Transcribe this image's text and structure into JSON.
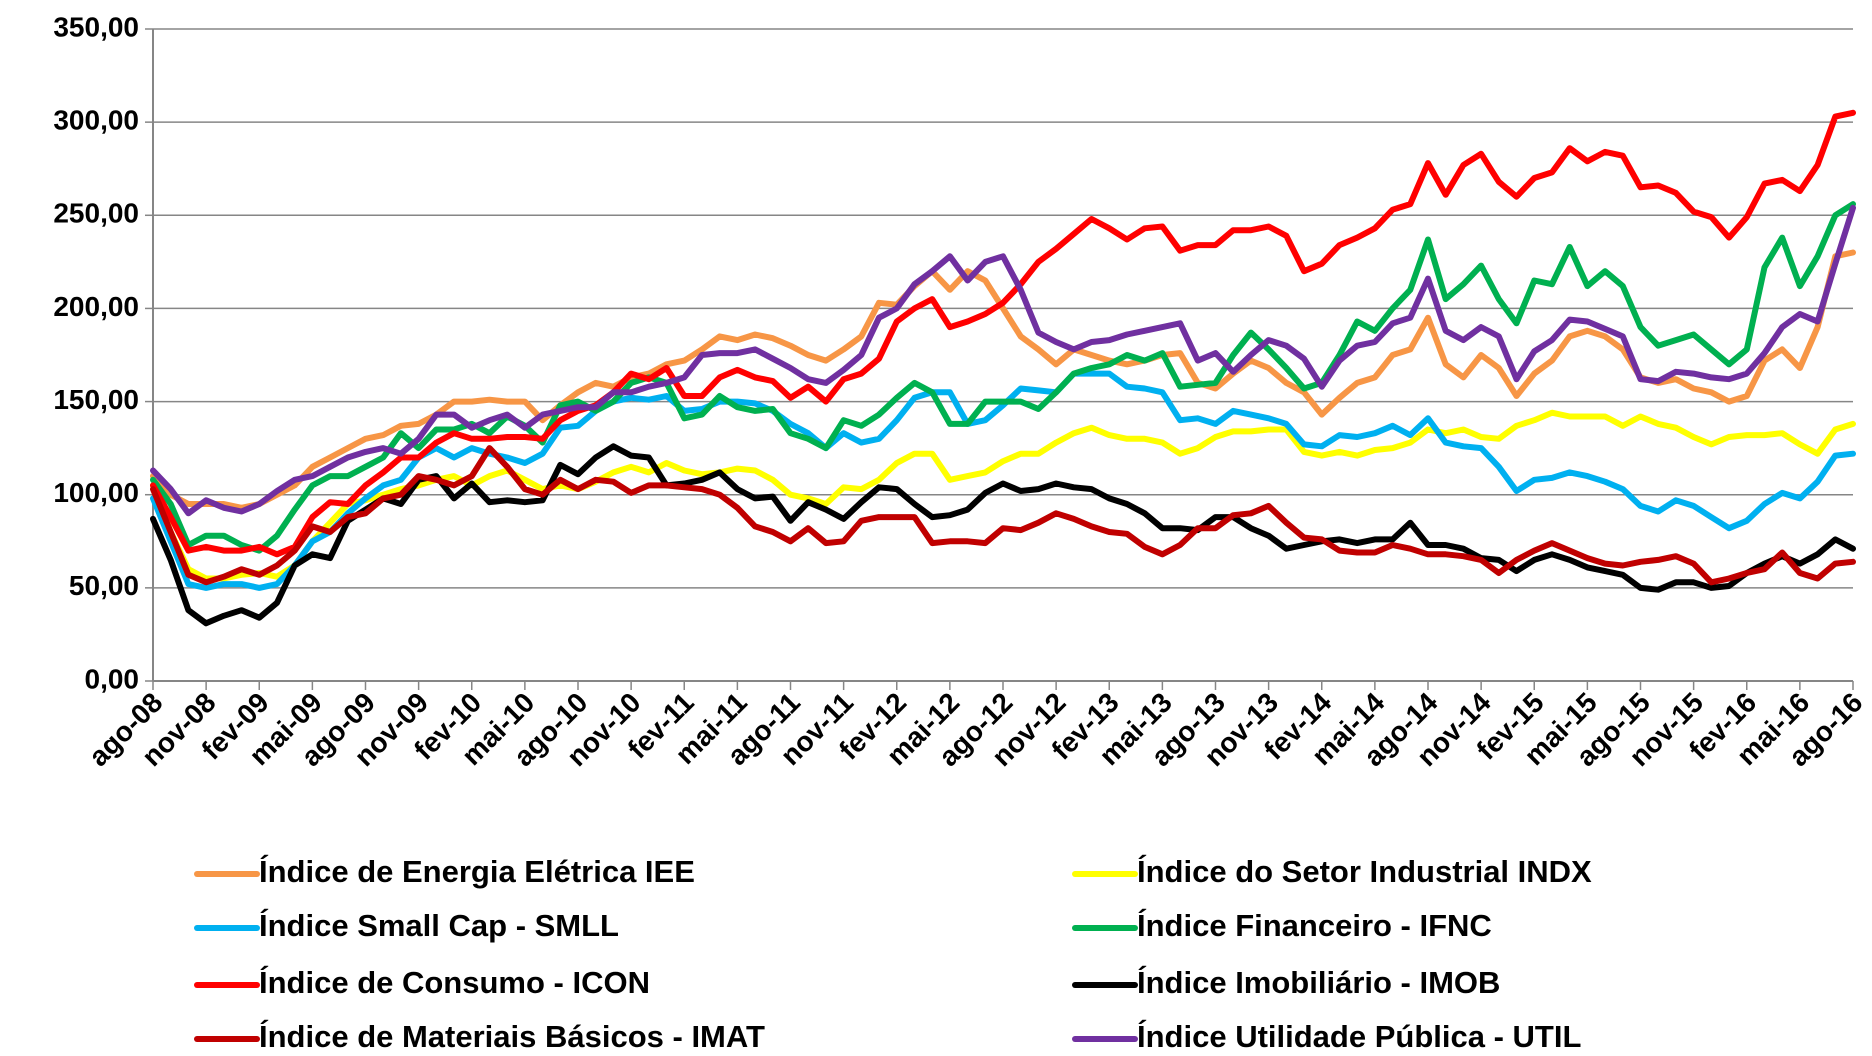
{
  "chart_data": {
    "type": "line",
    "legend": "bottom",
    "grid": true,
    "categories": [
      "ago-08",
      null,
      null,
      "nov-08",
      null,
      null,
      "fev-09",
      null,
      null,
      "mai-09",
      null,
      null,
      "ago-09",
      null,
      null,
      "nov-09",
      null,
      null,
      "fev-10",
      null,
      null,
      "mai-10",
      null,
      null,
      "ago-10",
      null,
      null,
      "nov-10",
      null,
      null,
      "fev-11",
      null,
      null,
      "mai-11",
      null,
      null,
      "ago-11",
      null,
      null,
      "nov-11",
      null,
      null,
      "fev-12",
      null,
      null,
      "mai-12",
      null,
      null,
      "ago-12",
      null,
      null,
      "nov-12",
      null,
      null,
      "fev-13",
      null,
      null,
      "mai-13",
      null,
      null,
      "ago-13",
      null,
      null,
      "nov-13",
      null,
      null,
      "fev-14",
      null,
      null,
      "mai-14",
      null,
      null,
      "ago-14",
      null,
      null,
      "nov-14",
      null,
      null,
      "fev-15",
      null,
      null,
      "mai-15",
      null,
      null,
      "ago-15",
      null,
      null,
      "nov-15",
      null,
      null,
      "fev-16",
      null,
      null,
      "mai-16",
      null,
      null,
      "ago-16"
    ],
    "ylim": [
      0,
      350
    ],
    "yticks": [
      {
        "value": 0,
        "label": "0,00"
      },
      {
        "value": 50,
        "label": "50,00"
      },
      {
        "value": 100,
        "label": "100,00"
      },
      {
        "value": 150,
        "label": "150,00"
      },
      {
        "value": 200,
        "label": "200,00"
      },
      {
        "value": 250,
        "label": "250,00"
      },
      {
        "value": 300,
        "label": "300,00"
      },
      {
        "value": 350,
        "label": "350,00"
      }
    ],
    "series": [
      {
        "name": "Índice de Energia Elétrica IEE",
        "color": "#f79646",
        "values": [
          110,
          100,
          95,
          95,
          95,
          93,
          95,
          100,
          105,
          115,
          120,
          125,
          130,
          132,
          137,
          138,
          143,
          150,
          150,
          151,
          150,
          150,
          140,
          148,
          155,
          160,
          158,
          163,
          165,
          170,
          172,
          178,
          185,
          183,
          186,
          184,
          180,
          175,
          172,
          178,
          185,
          203,
          202,
          212,
          220,
          210,
          220,
          215,
          200,
          185,
          178,
          170,
          178,
          175,
          172,
          170,
          172,
          175,
          176,
          160,
          157,
          165,
          172,
          168,
          160,
          155,
          143,
          152,
          160,
          163,
          175,
          178,
          195,
          170,
          163,
          175,
          168,
          153,
          165,
          172,
          185,
          188,
          185,
          178,
          163,
          160,
          162,
          157,
          155,
          150,
          153,
          172,
          178,
          168,
          190,
          228,
          230
        ]
      },
      {
        "name": "Índice do Setor Industrial INDX",
        "color": "#ffff00",
        "values": [
          105,
          80,
          60,
          55,
          55,
          57,
          58,
          56,
          62,
          75,
          85,
          95,
          97,
          100,
          103,
          105,
          108,
          110,
          105,
          110,
          113,
          108,
          103,
          105,
          103,
          107,
          112,
          115,
          112,
          117,
          113,
          111,
          112,
          114,
          113,
          108,
          100,
          98,
          95,
          104,
          103,
          108,
          117,
          122,
          122,
          108,
          110,
          112,
          118,
          122,
          122,
          128,
          133,
          136,
          132,
          130,
          130,
          128,
          122,
          125,
          131,
          134,
          134,
          135,
          135,
          123,
          121,
          123,
          121,
          124,
          125,
          128,
          135,
          133,
          135,
          131,
          130,
          137,
          140,
          144,
          142,
          142,
          142,
          137,
          142,
          138,
          136,
          131,
          127,
          131,
          132,
          132,
          133,
          127,
          122,
          135,
          138
        ]
      },
      {
        "name": "Índice Small Cap - SMLL",
        "color": "#00b0f0",
        "values": [
          98,
          75,
          52,
          50,
          52,
          52,
          50,
          52,
          62,
          75,
          80,
          90,
          98,
          105,
          108,
          120,
          125,
          120,
          125,
          122,
          120,
          117,
          122,
          136,
          137,
          145,
          150,
          152,
          151,
          153,
          145,
          146,
          150,
          150,
          149,
          145,
          138,
          133,
          125,
          133,
          128,
          130,
          140,
          152,
          155,
          155,
          138,
          140,
          148,
          157,
          156,
          155,
          165,
          165,
          165,
          158,
          157,
          155,
          140,
          141,
          138,
          145,
          143,
          141,
          138,
          127,
          126,
          132,
          131,
          133,
          137,
          132,
          141,
          128,
          126,
          125,
          115,
          102,
          108,
          109,
          112,
          110,
          107,
          103,
          94,
          91,
          97,
          94,
          88,
          82,
          86,
          95,
          101,
          98,
          107,
          121,
          122
        ]
      },
      {
        "name": "Índice Financeiro - IFNC",
        "color": "#00b050",
        "values": [
          108,
          95,
          73,
          78,
          78,
          73,
          70,
          78,
          92,
          105,
          110,
          110,
          115,
          120,
          133,
          125,
          135,
          135,
          138,
          133,
          142,
          137,
          128,
          148,
          150,
          145,
          150,
          160,
          163,
          160,
          141,
          143,
          153,
          147,
          145,
          146,
          133,
          130,
          125,
          140,
          137,
          143,
          152,
          160,
          155,
          138,
          138,
          150,
          150,
          150,
          146,
          155,
          165,
          168,
          170,
          175,
          172,
          176,
          158,
          159,
          160,
          175,
          187,
          178,
          168,
          157,
          160,
          175,
          193,
          188,
          200,
          210,
          237,
          205,
          213,
          223,
          205,
          192,
          215,
          213,
          233,
          212,
          220,
          212,
          190,
          180,
          183,
          186,
          178,
          170,
          178,
          222,
          238,
          212,
          228,
          250,
          256
        ]
      },
      {
        "name": "Índice de Consumo - ICON",
        "color": "#ff0000",
        "values": [
          105,
          88,
          70,
          72,
          70,
          70,
          72,
          68,
          72,
          88,
          96,
          95,
          105,
          112,
          120,
          120,
          128,
          133,
          130,
          130,
          131,
          131,
          130,
          140,
          145,
          148,
          155,
          165,
          162,
          168,
          153,
          153,
          163,
          167,
          163,
          161,
          152,
          158,
          150,
          162,
          165,
          173,
          193,
          200,
          205,
          190,
          193,
          197,
          203,
          213,
          225,
          232,
          240,
          248,
          243,
          237,
          243,
          244,
          231,
          234,
          234,
          242,
          242,
          244,
          239,
          220,
          224,
          234,
          238,
          243,
          253,
          256,
          278,
          261,
          277,
          283,
          268,
          260,
          270,
          273,
          286,
          279,
          284,
          282,
          265,
          266,
          262,
          252,
          249,
          238,
          249,
          267,
          269,
          263,
          277,
          303,
          305
        ]
      },
      {
        "name": "Índice Imobiliário - IMOB",
        "color": "#000000",
        "values": [
          87,
          65,
          38,
          31,
          35,
          38,
          34,
          42,
          62,
          68,
          66,
          86,
          92,
          98,
          95,
          108,
          110,
          98,
          106,
          96,
          97,
          96,
          97,
          116,
          111,
          120,
          126,
          121,
          120,
          105,
          106,
          108,
          112,
          103,
          98,
          99,
          86,
          96,
          92,
          87,
          96,
          104,
          103,
          95,
          88,
          89,
          92,
          101,
          106,
          102,
          103,
          106,
          104,
          103,
          98,
          95,
          90,
          82,
          82,
          81,
          88,
          88,
          82,
          78,
          71,
          73,
          75,
          76,
          74,
          76,
          76,
          85,
          73,
          73,
          71,
          66,
          65,
          59,
          65,
          68,
          65,
          61,
          59,
          57,
          50,
          49,
          53,
          53,
          50,
          51,
          58,
          63,
          67,
          63,
          68,
          76,
          71
        ]
      },
      {
        "name": "Índice de Materiais Básicos - IMAT",
        "color": "#c00000",
        "values": [
          103,
          80,
          57,
          53,
          56,
          60,
          57,
          62,
          70,
          83,
          80,
          88,
          90,
          98,
          100,
          110,
          108,
          105,
          110,
          125,
          115,
          103,
          100,
          108,
          103,
          108,
          107,
          101,
          105,
          105,
          104,
          103,
          100,
          93,
          83,
          80,
          75,
          82,
          74,
          75,
          86,
          88,
          88,
          88,
          74,
          75,
          75,
          74,
          82,
          81,
          85,
          90,
          87,
          83,
          80,
          79,
          72,
          68,
          73,
          82,
          82,
          89,
          90,
          94,
          85,
          77,
          76,
          70,
          69,
          69,
          73,
          71,
          68,
          68,
          67,
          65,
          58,
          65,
          70,
          74,
          70,
          66,
          63,
          62,
          64,
          65,
          67,
          63,
          53,
          55,
          58,
          60,
          69,
          58,
          55,
          63,
          64
        ]
      },
      {
        "name": "Índice Utilidade Pública - UTIL",
        "color": "#7030a0",
        "values": [
          113,
          103,
          90,
          97,
          93,
          91,
          95,
          102,
          108,
          110,
          115,
          120,
          123,
          125,
          122,
          130,
          143,
          143,
          136,
          140,
          143,
          136,
          143,
          145,
          147,
          147,
          155,
          155,
          158,
          160,
          163,
          175,
          176,
          176,
          178,
          173,
          168,
          162,
          160,
          167,
          175,
          195,
          200,
          213,
          220,
          228,
          215,
          225,
          228,
          210,
          187,
          182,
          178,
          182,
          183,
          186,
          188,
          190,
          192,
          172,
          176,
          166,
          175,
          183,
          180,
          173,
          158,
          172,
          180,
          182,
          192,
          195,
          216,
          188,
          183,
          190,
          185,
          162,
          177,
          183,
          194,
          193,
          189,
          185,
          162,
          161,
          166,
          165,
          163,
          162,
          165,
          176,
          190,
          197,
          193,
          224,
          254
        ]
      }
    ]
  }
}
